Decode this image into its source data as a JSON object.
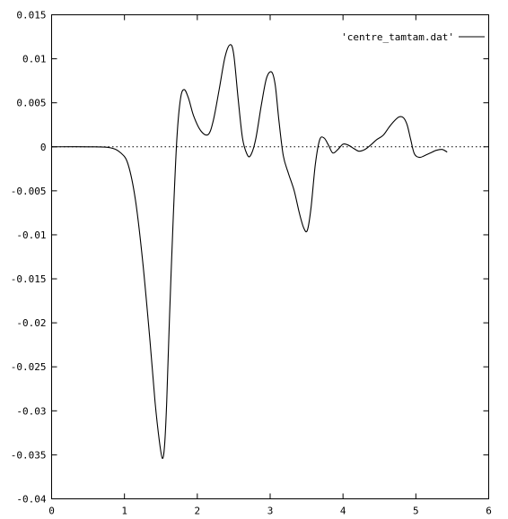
{
  "chart_data": {
    "type": "line",
    "title": "",
    "xlabel": "",
    "ylabel": "",
    "xlim": [
      0,
      6
    ],
    "ylim": [
      -0.04,
      0.015
    ],
    "x_ticks": [
      0,
      1,
      2,
      3,
      4,
      5,
      6
    ],
    "x_tick_labels": [
      "0",
      "1",
      "2",
      "3",
      "4",
      "5",
      "6"
    ],
    "y_ticks": [
      0.015,
      0.01,
      0.005,
      0,
      -0.005,
      -0.01,
      -0.015,
      -0.02,
      -0.025,
      -0.03,
      -0.035,
      -0.04
    ],
    "y_tick_labels": [
      "0.015",
      "0.01",
      "0.005",
      "0",
      "-0.005",
      "-0.01",
      "-0.015",
      "-0.02",
      "-0.025",
      "-0.03",
      "-0.035",
      "-0.04"
    ],
    "grid": false,
    "legend": "top-right",
    "zero_line": {
      "style": "dotted",
      "y": 0
    },
    "series": [
      {
        "name": "'centre_tamtam.dat'",
        "color": "#000000",
        "x": [
          0.0,
          0.5,
          0.8,
          0.95,
          1.05,
          1.15,
          1.25,
          1.35,
          1.42,
          1.48,
          1.52,
          1.55,
          1.58,
          1.62,
          1.67,
          1.72,
          1.77,
          1.82,
          1.88,
          1.95,
          2.05,
          2.15,
          2.22,
          2.3,
          2.38,
          2.45,
          2.5,
          2.56,
          2.62,
          2.68,
          2.73,
          2.8,
          2.88,
          2.95,
          3.02,
          3.07,
          3.12,
          3.18,
          3.25,
          3.33,
          3.4,
          3.46,
          3.51,
          3.56,
          3.62,
          3.68,
          3.74,
          3.8,
          3.86,
          3.93,
          4.0,
          4.07,
          4.15,
          4.22,
          4.3,
          4.38,
          4.46,
          4.55,
          4.63,
          4.7,
          4.77,
          4.83,
          4.88,
          4.93,
          4.98,
          5.05,
          5.12,
          5.2,
          5.28,
          5.36,
          5.43
        ],
        "y": [
          0.0,
          0.0,
          -0.0001,
          -0.0007,
          -0.002,
          -0.006,
          -0.013,
          -0.022,
          -0.029,
          -0.0335,
          -0.0354,
          -0.034,
          -0.029,
          -0.019,
          -0.008,
          0.001,
          0.0055,
          0.0065,
          0.0055,
          0.0035,
          0.0018,
          0.0014,
          0.003,
          0.0065,
          0.0102,
          0.0116,
          0.0105,
          0.0055,
          0.001,
          -0.0008,
          -0.001,
          0.0008,
          0.0048,
          0.0078,
          0.0085,
          0.007,
          0.003,
          -0.001,
          -0.003,
          -0.005,
          -0.0075,
          -0.0092,
          -0.0095,
          -0.007,
          -0.002,
          0.0008,
          0.001,
          0.0002,
          -0.0007,
          -0.0003,
          0.0003,
          0.0002,
          -0.0002,
          -0.0005,
          -0.0003,
          0.0002,
          0.0008,
          0.0013,
          0.0022,
          0.0029,
          0.0034,
          0.0033,
          0.0025,
          0.0008,
          -0.0008,
          -0.0012,
          -0.001,
          -0.0007,
          -0.0004,
          -0.0003,
          -0.0006
        ]
      }
    ]
  }
}
